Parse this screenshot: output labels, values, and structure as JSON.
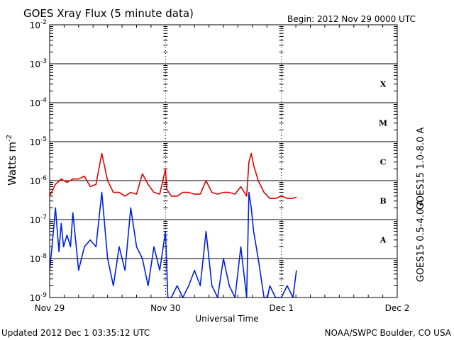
{
  "chart_data": {
    "type": "line",
    "title": "GOES Xray Flux (5 minute data)",
    "begin_label": "Begin:  2012 Nov 29 0000 UTC",
    "xlabel": "Universal Time",
    "ylabel": "Watts m",
    "ylabel_sup": "-2",
    "footer_left": "Updated 2012 Dec  1 03:35:12 UTC",
    "footer_right": "NOAA/SWPC Boulder, CO USA",
    "x_ticks": [
      "Nov 29",
      "Nov 30",
      "Dec 1",
      "Dec 2"
    ],
    "xlim_days": [
      0,
      3
    ],
    "y_scale": "log",
    "ylim": [
      1e-09,
      0.01
    ],
    "y_ticks": [
      {
        "base": "10",
        "exp": "-9"
      },
      {
        "base": "10",
        "exp": "-8"
      },
      {
        "base": "10",
        "exp": "-7"
      },
      {
        "base": "10",
        "exp": "-6"
      },
      {
        "base": "10",
        "exp": "-5"
      },
      {
        "base": "10",
        "exp": "-4"
      },
      {
        "base": "10",
        "exp": "-3"
      },
      {
        "base": "10",
        "exp": "-2"
      }
    ],
    "flare_classes": [
      "A",
      "B",
      "C",
      "M",
      "X"
    ],
    "grid": true,
    "series": [
      {
        "name": "GOES15 1.0-8.0 A",
        "color": "#e00000",
        "x": [
          0.0,
          0.05,
          0.1,
          0.15,
          0.2,
          0.25,
          0.3,
          0.35,
          0.4,
          0.45,
          0.5,
          0.55,
          0.6,
          0.65,
          0.7,
          0.75,
          0.8,
          0.85,
          0.9,
          0.95,
          1.0,
          1.01,
          1.05,
          1.1,
          1.15,
          1.2,
          1.25,
          1.3,
          1.35,
          1.4,
          1.45,
          1.5,
          1.55,
          1.6,
          1.65,
          1.7,
          1.72,
          1.74,
          1.76,
          1.8,
          1.85,
          1.9,
          1.95,
          2.0,
          2.05,
          2.1,
          2.13
        ],
        "y": [
          4e-07,
          8e-07,
          1.1e-06,
          9e-07,
          1.1e-06,
          1.1e-06,
          1.3e-06,
          7e-07,
          8e-07,
          5e-06,
          1e-06,
          5e-07,
          5e-07,
          4e-07,
          5e-07,
          4.5e-07,
          1.5e-06,
          8e-07,
          5e-07,
          4.5e-07,
          2e-06,
          6e-07,
          4e-07,
          4e-07,
          5e-07,
          5e-07,
          4.5e-07,
          4.5e-07,
          1e-06,
          5e-07,
          4.5e-07,
          5e-07,
          5e-07,
          4.5e-07,
          7e-07,
          4e-07,
          3e-06,
          5e-06,
          2.5e-06,
          1e-06,
          5e-07,
          3.5e-07,
          3.5e-07,
          4e-07,
          3.5e-07,
          3.5e-07,
          3.8e-07
        ]
      },
      {
        "name": "GOES15 0.5-4.0 A",
        "color": "#0020e0",
        "x": [
          0.0,
          0.02,
          0.05,
          0.08,
          0.1,
          0.12,
          0.15,
          0.18,
          0.2,
          0.25,
          0.3,
          0.35,
          0.4,
          0.45,
          0.5,
          0.55,
          0.6,
          0.65,
          0.7,
          0.75,
          0.8,
          0.85,
          0.9,
          0.95,
          1.0,
          1.02,
          1.05,
          1.1,
          1.15,
          1.2,
          1.25,
          1.3,
          1.35,
          1.4,
          1.45,
          1.5,
          1.55,
          1.6,
          1.65,
          1.7,
          1.72,
          1.74,
          1.76,
          1.8,
          1.85,
          1.88,
          1.9,
          1.95,
          2.0,
          2.05,
          2.1,
          2.13
        ],
        "y": [
          5e-09,
          2e-08,
          2e-07,
          1.5e-08,
          8e-08,
          2e-08,
          4e-08,
          2e-08,
          1.5e-07,
          5e-09,
          2e-08,
          3e-08,
          2e-08,
          5e-07,
          1e-08,
          2e-09,
          2e-08,
          5e-09,
          2e-07,
          2e-08,
          1e-08,
          2e-09,
          2e-08,
          5e-09,
          5e-08,
          1e-09,
          1e-09,
          2e-09,
          1e-09,
          2e-09,
          5e-09,
          2e-09,
          5e-08,
          2e-09,
          1e-09,
          1e-08,
          2e-09,
          1e-09,
          2e-08,
          1e-09,
          5e-07,
          2e-07,
          5e-08,
          1e-08,
          1e-09,
          1e-09,
          2e-09,
          1e-09,
          1e-09,
          2e-09,
          1e-09,
          5e-09
        ]
      }
    ]
  }
}
